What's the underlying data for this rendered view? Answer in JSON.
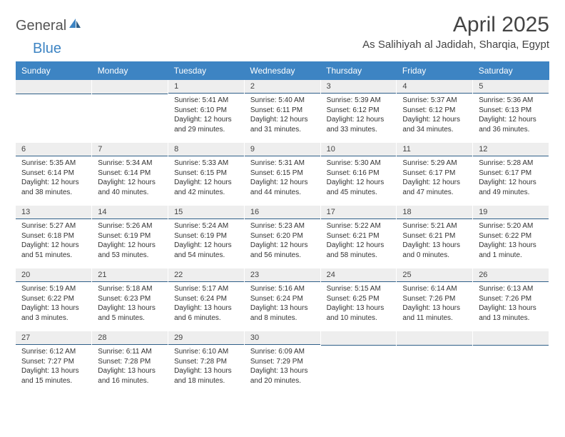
{
  "brand": {
    "general": "General",
    "blue": "Blue"
  },
  "title": "April 2025",
  "location": "As Salihiyah al Jadidah, Sharqia, Egypt",
  "colors": {
    "header_bg": "#3d84c3",
    "header_text": "#ffffff",
    "daynum_bg": "#eeeeee",
    "daynum_border": "#2f5f88",
    "body_bg": "#ffffff",
    "text": "#333333",
    "brand_blue": "#3d84c3",
    "brand_grey": "#555555"
  },
  "typography": {
    "title_fontsize": 30,
    "location_fontsize": 15,
    "dayhead_fontsize": 12,
    "daynum_fontsize": 11,
    "body_fontsize": 10
  },
  "layout": {
    "columns": 7,
    "rows": 5,
    "leading_blanks": 2,
    "trailing_blanks": 3
  },
  "weekdays": [
    "Sunday",
    "Monday",
    "Tuesday",
    "Wednesday",
    "Thursday",
    "Friday",
    "Saturday"
  ],
  "days": [
    {
      "n": 1,
      "sunrise": "5:41 AM",
      "sunset": "6:10 PM",
      "daylight": "12 hours and 29 minutes."
    },
    {
      "n": 2,
      "sunrise": "5:40 AM",
      "sunset": "6:11 PM",
      "daylight": "12 hours and 31 minutes."
    },
    {
      "n": 3,
      "sunrise": "5:39 AM",
      "sunset": "6:12 PM",
      "daylight": "12 hours and 33 minutes."
    },
    {
      "n": 4,
      "sunrise": "5:37 AM",
      "sunset": "6:12 PM",
      "daylight": "12 hours and 34 minutes."
    },
    {
      "n": 5,
      "sunrise": "5:36 AM",
      "sunset": "6:13 PM",
      "daylight": "12 hours and 36 minutes."
    },
    {
      "n": 6,
      "sunrise": "5:35 AM",
      "sunset": "6:14 PM",
      "daylight": "12 hours and 38 minutes."
    },
    {
      "n": 7,
      "sunrise": "5:34 AM",
      "sunset": "6:14 PM",
      "daylight": "12 hours and 40 minutes."
    },
    {
      "n": 8,
      "sunrise": "5:33 AM",
      "sunset": "6:15 PM",
      "daylight": "12 hours and 42 minutes."
    },
    {
      "n": 9,
      "sunrise": "5:31 AM",
      "sunset": "6:15 PM",
      "daylight": "12 hours and 44 minutes."
    },
    {
      "n": 10,
      "sunrise": "5:30 AM",
      "sunset": "6:16 PM",
      "daylight": "12 hours and 45 minutes."
    },
    {
      "n": 11,
      "sunrise": "5:29 AM",
      "sunset": "6:17 PM",
      "daylight": "12 hours and 47 minutes."
    },
    {
      "n": 12,
      "sunrise": "5:28 AM",
      "sunset": "6:17 PM",
      "daylight": "12 hours and 49 minutes."
    },
    {
      "n": 13,
      "sunrise": "5:27 AM",
      "sunset": "6:18 PM",
      "daylight": "12 hours and 51 minutes."
    },
    {
      "n": 14,
      "sunrise": "5:26 AM",
      "sunset": "6:19 PM",
      "daylight": "12 hours and 53 minutes."
    },
    {
      "n": 15,
      "sunrise": "5:24 AM",
      "sunset": "6:19 PM",
      "daylight": "12 hours and 54 minutes."
    },
    {
      "n": 16,
      "sunrise": "5:23 AM",
      "sunset": "6:20 PM",
      "daylight": "12 hours and 56 minutes."
    },
    {
      "n": 17,
      "sunrise": "5:22 AM",
      "sunset": "6:21 PM",
      "daylight": "12 hours and 58 minutes."
    },
    {
      "n": 18,
      "sunrise": "5:21 AM",
      "sunset": "6:21 PM",
      "daylight": "13 hours and 0 minutes."
    },
    {
      "n": 19,
      "sunrise": "5:20 AM",
      "sunset": "6:22 PM",
      "daylight": "13 hours and 1 minute."
    },
    {
      "n": 20,
      "sunrise": "5:19 AM",
      "sunset": "6:22 PM",
      "daylight": "13 hours and 3 minutes."
    },
    {
      "n": 21,
      "sunrise": "5:18 AM",
      "sunset": "6:23 PM",
      "daylight": "13 hours and 5 minutes."
    },
    {
      "n": 22,
      "sunrise": "5:17 AM",
      "sunset": "6:24 PM",
      "daylight": "13 hours and 6 minutes."
    },
    {
      "n": 23,
      "sunrise": "5:16 AM",
      "sunset": "6:24 PM",
      "daylight": "13 hours and 8 minutes."
    },
    {
      "n": 24,
      "sunrise": "5:15 AM",
      "sunset": "6:25 PM",
      "daylight": "13 hours and 10 minutes."
    },
    {
      "n": 25,
      "sunrise": "6:14 AM",
      "sunset": "7:26 PM",
      "daylight": "13 hours and 11 minutes."
    },
    {
      "n": 26,
      "sunrise": "6:13 AM",
      "sunset": "7:26 PM",
      "daylight": "13 hours and 13 minutes."
    },
    {
      "n": 27,
      "sunrise": "6:12 AM",
      "sunset": "7:27 PM",
      "daylight": "13 hours and 15 minutes."
    },
    {
      "n": 28,
      "sunrise": "6:11 AM",
      "sunset": "7:28 PM",
      "daylight": "13 hours and 16 minutes."
    },
    {
      "n": 29,
      "sunrise": "6:10 AM",
      "sunset": "7:28 PM",
      "daylight": "13 hours and 18 minutes."
    },
    {
      "n": 30,
      "sunrise": "6:09 AM",
      "sunset": "7:29 PM",
      "daylight": "13 hours and 20 minutes."
    }
  ],
  "labels": {
    "sunrise": "Sunrise:",
    "sunset": "Sunset:",
    "daylight": "Daylight:"
  }
}
